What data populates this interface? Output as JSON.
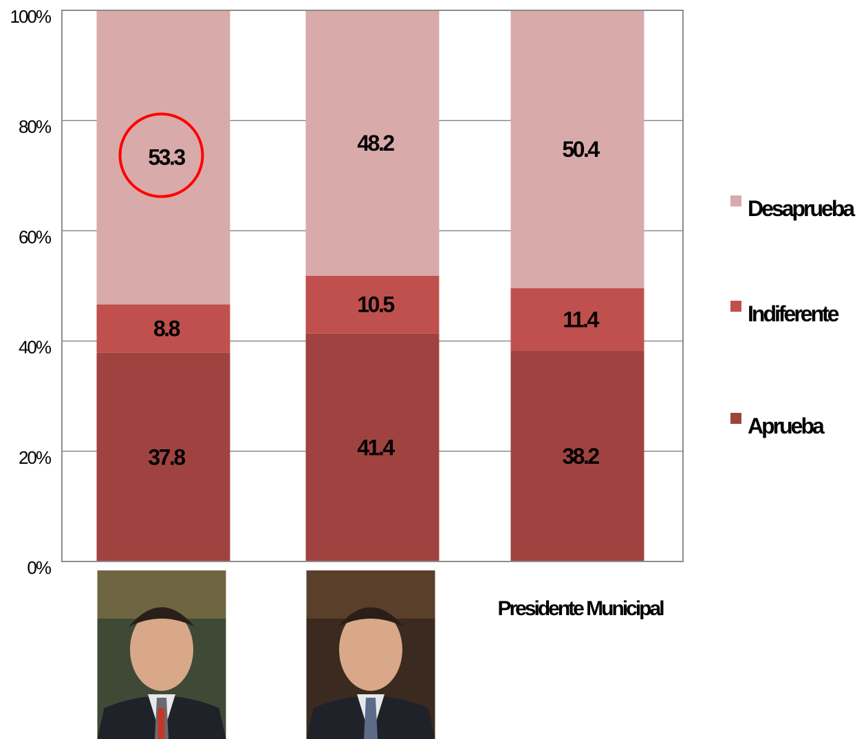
{
  "chart_data": {
    "type": "bar",
    "stacked": true,
    "percent_stacked": true,
    "categories": [
      "",
      "",
      "Presidente Municipal"
    ],
    "series": [
      {
        "name": "Aprueba",
        "values": [
          37.8,
          41.4,
          38.2
        ],
        "color": "#a04340"
      },
      {
        "name": "Indiferente",
        "values": [
          8.8,
          10.5,
          11.4
        ],
        "color": "#c0504d"
      },
      {
        "name": "Desaprueba",
        "values": [
          53.3,
          48.2,
          50.4
        ],
        "color": "#d9aaaa"
      }
    ],
    "ylim": [
      0,
      100
    ],
    "yticks": [
      "0%",
      "20%",
      "40%",
      "60%",
      "80%",
      "100%"
    ],
    "grid": true,
    "legend_position": "right",
    "highlight": {
      "series": "Desaprueba",
      "category_index": 0,
      "shape": "circle",
      "color": "#ff0000"
    },
    "category_images": [
      "portrait",
      "portrait",
      null
    ]
  }
}
